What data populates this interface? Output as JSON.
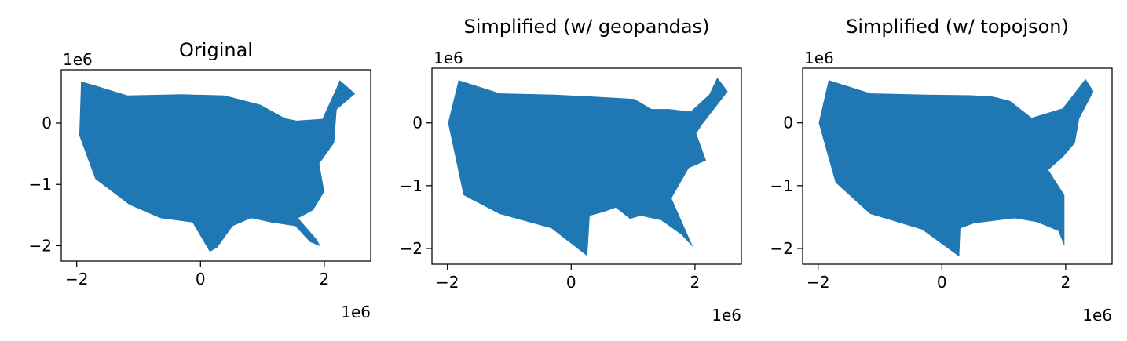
{
  "colors": {
    "fill": "#1f77b4",
    "axes": "#000000",
    "background": "#ffffff"
  },
  "axis_ticks": {
    "x": [
      -2,
      0,
      2
    ],
    "x_labels": [
      "−2",
      "0",
      "2"
    ],
    "y": [
      0,
      -1,
      -2
    ],
    "y_labels": [
      "0",
      "−1",
      "−2"
    ],
    "offset_label": "1e6"
  },
  "chart_data": [
    {
      "type": "map",
      "title": "Original",
      "xlim": [
        -2.25,
        2.75
      ],
      "ylim": [
        -2.25,
        0.87
      ],
      "xlabel": "",
      "ylabel": "",
      "x_offset_label": "1e6",
      "y_offset_label": "1e6",
      "outline_x": [
        -1.93,
        -1.72,
        -1.18,
        -0.3,
        0.39,
        0.97,
        1.36,
        1.55,
        1.97,
        2.2,
        2.25,
        2.5,
        2.2,
        2.16,
        1.92,
        2.0,
        1.82,
        1.58,
        1.87,
        1.94,
        1.77,
        1.53,
        1.14,
        0.82,
        0.52,
        0.27,
        0.15,
        -0.13,
        -0.65,
        -1.15,
        -1.7,
        -1.96
      ],
      "outline_y": [
        0.68,
        0.62,
        0.45,
        0.47,
        0.45,
        0.3,
        0.08,
        0.04,
        0.07,
        0.58,
        0.7,
        0.48,
        0.22,
        -0.32,
        -0.66,
        -1.12,
        -1.42,
        -1.55,
        -1.89,
        -2.01,
        -1.94,
        -1.68,
        -1.62,
        -1.55,
        -1.68,
        -2.03,
        -2.1,
        -1.62,
        -1.55,
        -1.33,
        -0.91,
        -0.2
      ]
    },
    {
      "type": "map",
      "title": "Simplified (w/ geopandas)",
      "xlim": [
        -2.25,
        2.75
      ],
      "ylim": [
        -2.25,
        0.87
      ],
      "xlabel": "",
      "ylabel": "",
      "x_offset_label": "1e6",
      "y_offset_label": "1e6",
      "outline_x": [
        -1.82,
        -1.15,
        -0.27,
        0.7,
        1.02,
        1.3,
        1.58,
        1.93,
        2.23,
        2.36,
        2.53,
        2.12,
        2.02,
        2.18,
        1.9,
        1.62,
        1.97,
        1.78,
        1.45,
        1.12,
        0.95,
        0.72,
        0.52,
        0.3,
        0.26,
        -0.32,
        -1.16,
        -1.74,
        -1.99
      ],
      "outline_y": [
        0.68,
        0.47,
        0.45,
        0.4,
        0.38,
        0.22,
        0.22,
        0.18,
        0.45,
        0.72,
        0.5,
        -0.02,
        -0.17,
        -0.6,
        -0.72,
        -1.2,
        -1.98,
        -1.78,
        -1.55,
        -1.48,
        -1.53,
        -1.35,
        -1.42,
        -1.48,
        -2.12,
        -1.68,
        -1.45,
        -1.15,
        0.0
      ]
    },
    {
      "type": "map",
      "title": "Simplified (w/ topojson)",
      "xlim": [
        -2.25,
        2.75
      ],
      "ylim": [
        -2.25,
        0.87
      ],
      "xlabel": "",
      "ylabel": "",
      "x_offset_label": "1e6",
      "y_offset_label": "1e6",
      "outline_x": [
        -1.83,
        -1.15,
        -0.25,
        0.47,
        0.82,
        1.1,
        1.45,
        1.95,
        2.32,
        2.45,
        2.22,
        2.15,
        1.95,
        1.72,
        1.98,
        1.98,
        1.88,
        1.53,
        1.18,
        0.92,
        0.52,
        0.3,
        0.28,
        -0.32,
        -1.16,
        -1.72,
        -1.99
      ],
      "outline_y": [
        0.68,
        0.47,
        0.45,
        0.44,
        0.42,
        0.35,
        0.08,
        0.23,
        0.7,
        0.5,
        0.07,
        -0.32,
        -0.55,
        -0.75,
        -1.15,
        -1.96,
        -1.72,
        -1.58,
        -1.52,
        -1.55,
        -1.6,
        -1.68,
        -2.13,
        -1.7,
        -1.45,
        -0.95,
        0.0
      ]
    }
  ]
}
